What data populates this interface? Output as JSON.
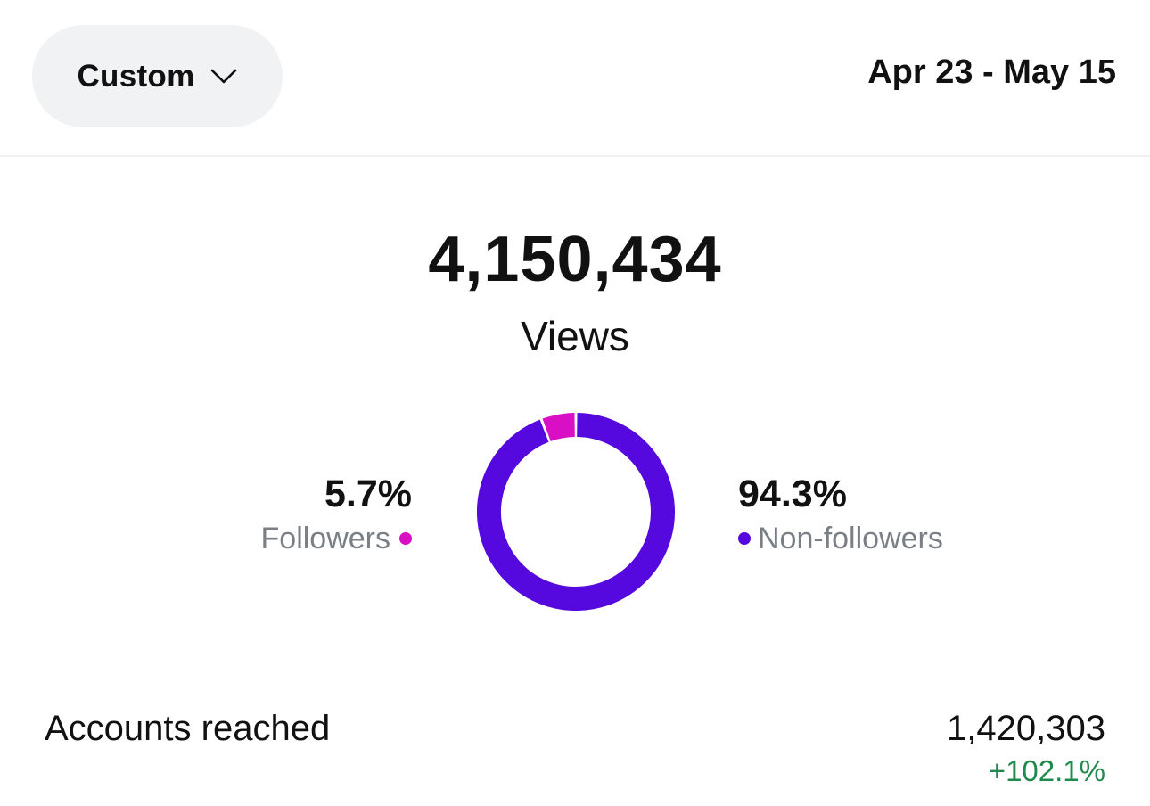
{
  "header": {
    "range_selector": "Custom",
    "date_range": "Apr 23 - May 15"
  },
  "summary": {
    "total": "4,150,434",
    "label": "Views"
  },
  "breakdown": {
    "followers": {
      "percent_text": "5.7%",
      "label": "Followers",
      "color": "#d90fc5"
    },
    "non_followers": {
      "percent_text": "94.3%",
      "label": "Non-followers",
      "color": "#5609de"
    }
  },
  "chart_data": {
    "type": "pie",
    "categories": [
      "Followers",
      "Non-followers"
    ],
    "values": [
      5.7,
      94.3
    ],
    "colors": [
      "#d90fc5",
      "#5609de"
    ]
  },
  "metrics": [
    {
      "label": "Accounts reached",
      "value": "1,420,303",
      "change": "+102.1%",
      "change_color": "#1f8a4c"
    }
  ],
  "icons": {
    "range_selector_icon": "chevron-down-icon"
  }
}
